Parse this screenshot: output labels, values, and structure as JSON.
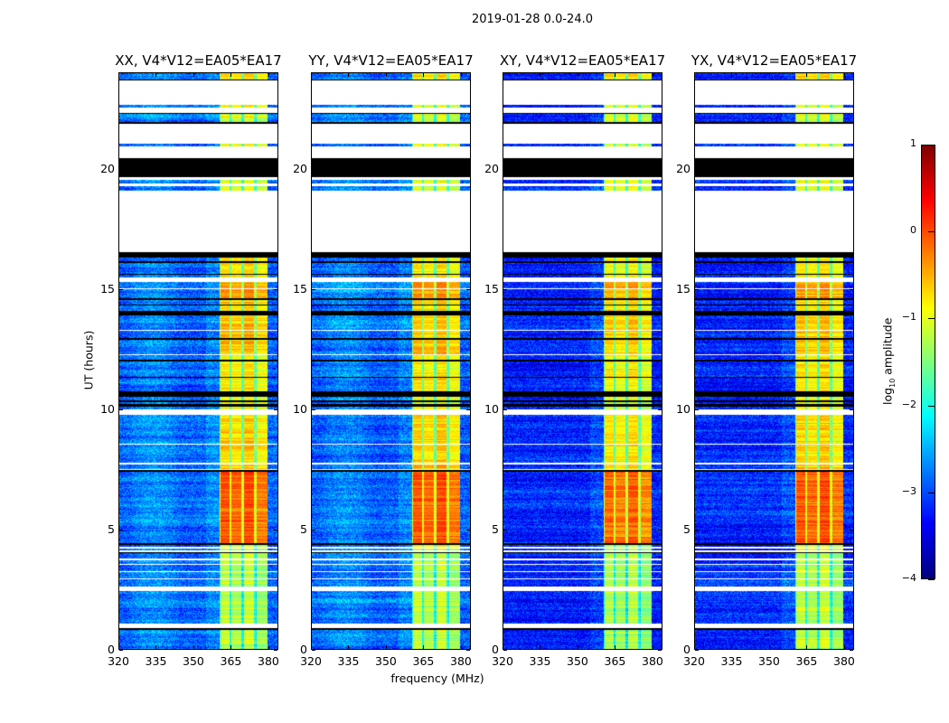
{
  "chart_data": {
    "type": "heatmap",
    "title": "2019-01-28 0.0-24.0",
    "xlabel": "frequency (MHz)",
    "ylabel": "UT (hours)",
    "xlim": [
      320,
      384
    ],
    "ylim": [
      0,
      24
    ],
    "xticks": [
      320,
      335,
      350,
      365,
      380
    ],
    "yticks": [
      0,
      5,
      10,
      15,
      20
    ],
    "colorbar": {
      "label_prefix": "log",
      "label_sub": "10",
      "label_suffix": " amplitude",
      "range": [
        -4,
        1
      ],
      "ticks": [
        "1",
        "0",
        "−1",
        "−2",
        "−3",
        "−4"
      ],
      "tick_values": [
        1,
        0,
        -1,
        -2,
        -3,
        -4
      ],
      "colormap": "jet"
    },
    "band": {
      "start_mhz": 360.5,
      "end_mhz": 380,
      "subband_edges_mhz": [
        365,
        370,
        375
      ]
    },
    "panels": [
      {
        "title": "XX, V4*V12=EA05*EA17",
        "background_log_amp": -2.9,
        "band_offset": 0.0
      },
      {
        "title": "YY, V4*V12=EA05*EA17",
        "background_log_amp": -2.9,
        "band_offset": 0.0
      },
      {
        "title": "XY, V4*V12=EA05*EA17",
        "background_log_amp": -3.2,
        "band_offset": -0.1
      },
      {
        "title": "YX, V4*V12=EA05*EA17",
        "background_log_amp": -3.2,
        "band_offset": 0.0
      }
    ],
    "time_segments_hours": [
      [
        0,
        0.8,
        "data",
        -1.2
      ],
      [
        0.8,
        0.85,
        "black"
      ],
      [
        0.85,
        1.05,
        "flag"
      ],
      [
        1.05,
        2.4,
        "data",
        -1.2
      ],
      [
        2.4,
        2.6,
        "flag"
      ],
      [
        2.6,
        2.9,
        "data",
        -1.2
      ],
      [
        2.9,
        2.95,
        "flag"
      ],
      [
        2.95,
        3.2,
        "data",
        -1.2
      ],
      [
        3.2,
        3.25,
        "flag"
      ],
      [
        3.25,
        3.5,
        "data",
        -1.2
      ],
      [
        3.5,
        3.55,
        "flag"
      ],
      [
        3.55,
        3.7,
        "data",
        -1.2
      ],
      [
        3.7,
        3.75,
        "flag"
      ],
      [
        3.75,
        4.0,
        "data",
        -1.2
      ],
      [
        4.0,
        4.05,
        "black"
      ],
      [
        4.05,
        4.1,
        "flag"
      ],
      [
        4.1,
        4.2,
        "data",
        -1.0
      ],
      [
        4.2,
        4.25,
        "flag"
      ],
      [
        4.25,
        4.35,
        "data",
        -1.0
      ],
      [
        4.35,
        4.4,
        "black"
      ],
      [
        4.4,
        7.4,
        "data",
        -0.1
      ],
      [
        7.4,
        7.45,
        "black"
      ],
      [
        7.45,
        7.5,
        "flag"
      ],
      [
        7.5,
        7.7,
        "data",
        -0.6
      ],
      [
        7.7,
        7.75,
        "flag"
      ],
      [
        7.75,
        8.5,
        "data",
        -0.7
      ],
      [
        8.5,
        8.55,
        "flag"
      ],
      [
        8.55,
        9.75,
        "data",
        -0.7
      ],
      [
        9.75,
        10.0,
        "flag"
      ],
      [
        10.0,
        10.1,
        "data",
        -0.9
      ],
      [
        10.1,
        10.2,
        "black"
      ],
      [
        10.2,
        10.3,
        "data",
        -0.9
      ],
      [
        10.3,
        10.35,
        "black"
      ],
      [
        10.35,
        10.5,
        "data",
        -0.9
      ],
      [
        10.5,
        10.75,
        "black"
      ],
      [
        10.75,
        11.3,
        "data",
        -0.8
      ],
      [
        11.3,
        11.35,
        "black"
      ],
      [
        11.35,
        12.0,
        "data",
        -0.8
      ],
      [
        12.0,
        12.05,
        "black"
      ],
      [
        12.05,
        12.25,
        "data",
        -0.8
      ],
      [
        12.25,
        12.3,
        "flag"
      ],
      [
        12.3,
        12.9,
        "data",
        -0.6
      ],
      [
        12.9,
        12.95,
        "black"
      ],
      [
        12.95,
        13.25,
        "data",
        -0.6
      ],
      [
        13.25,
        13.3,
        "flag"
      ],
      [
        13.3,
        13.9,
        "data",
        -0.6
      ],
      [
        13.9,
        14.1,
        "black"
      ],
      [
        14.1,
        14.3,
        "data",
        -0.7
      ],
      [
        14.3,
        14.35,
        "black"
      ],
      [
        14.35,
        14.55,
        "data",
        -0.7
      ],
      [
        14.55,
        14.6,
        "black"
      ],
      [
        14.6,
        15.0,
        "data",
        -0.4
      ],
      [
        15.0,
        15.05,
        "flag"
      ],
      [
        15.05,
        15.3,
        "data",
        -0.4
      ],
      [
        15.3,
        15.5,
        "flag"
      ],
      [
        15.5,
        15.6,
        "data",
        -0.8
      ],
      [
        15.6,
        15.65,
        "black"
      ],
      [
        15.65,
        16.1,
        "data",
        -0.8
      ],
      [
        16.1,
        16.15,
        "black"
      ],
      [
        16.15,
        16.3,
        "data",
        -0.8
      ],
      [
        16.3,
        16.55,
        "black"
      ],
      [
        16.55,
        19.1,
        "flag"
      ],
      [
        19.1,
        19.3,
        "data",
        -1.0
      ],
      [
        19.3,
        19.4,
        "flag"
      ],
      [
        19.4,
        19.55,
        "data",
        -1.0
      ],
      [
        19.55,
        19.65,
        "flag"
      ],
      [
        19.65,
        20.45,
        "black"
      ],
      [
        20.45,
        20.95,
        "flag"
      ],
      [
        20.95,
        21.08,
        "data",
        -1.0
      ],
      [
        21.08,
        21.9,
        "flag"
      ],
      [
        21.9,
        21.95,
        "black"
      ],
      [
        21.95,
        22.3,
        "data",
        -1.0
      ],
      [
        22.3,
        22.35,
        "black"
      ],
      [
        22.35,
        22.55,
        "flag"
      ],
      [
        22.55,
        22.7,
        "data",
        -1.0
      ],
      [
        22.7,
        23.7,
        "flag"
      ],
      [
        23.7,
        23.75,
        "black"
      ],
      [
        23.75,
        24,
        "data",
        -0.7
      ]
    ]
  }
}
